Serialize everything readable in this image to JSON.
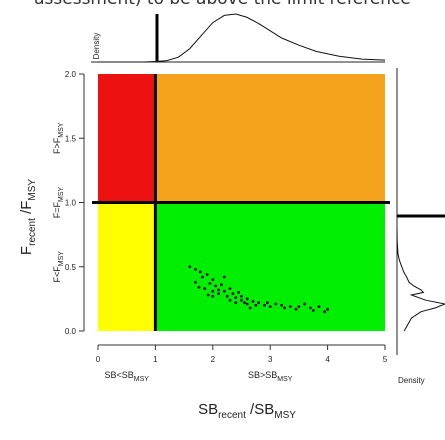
{
  "banner_text": "assessment) to be above the limit reference",
  "chart_data": {
    "type": "scatter",
    "xlabel_main": "SB",
    "xlabel_main_sub": "recent",
    "xlabel_sep": " /SB",
    "xlabel_main_sub2": "MSY",
    "ylabel_main": "F",
    "ylabel_main_sub": "recent",
    "ylabel_sep": " /F",
    "ylabel_main_sub2": "MSY",
    "x_ticks": [
      "0",
      "1",
      "2",
      "3",
      "4",
      "5"
    ],
    "y_ticks": [
      "0.0",
      "0.5",
      "1.0",
      "1.5",
      "2.0"
    ],
    "xlim": [
      0,
      5
    ],
    "ylim": [
      0,
      2
    ],
    "x_region_labels": [
      {
        "main": "SB<SB",
        "sub": "MSY",
        "x": 0.5
      },
      {
        "main": "SB>SB",
        "sub": "MSY",
        "x": 3.0
      }
    ],
    "y_region_labels": [
      {
        "main": "F>F",
        "sub": "MSY",
        "y": 1.5
      },
      {
        "main": "F=F",
        "sub": "MSY",
        "y": 1.0
      },
      {
        "main": "F<F",
        "sub": "MSY",
        "y": 0.5
      }
    ],
    "top_density_label": "Density",
    "right_density_label": "Density",
    "reference_lines": {
      "x": 1.0,
      "y": 1.0
    },
    "quadrant_colors": {
      "top_left": "#ee1111",
      "top_right": "#f5a31c",
      "bottom_left": "#ffff00",
      "bottom_right": "#00ee00"
    },
    "points": [
      [
        1.6,
        0.5
      ],
      [
        1.7,
        0.48
      ],
      [
        1.78,
        0.46
      ],
      [
        1.82,
        0.42
      ],
      [
        1.9,
        0.44
      ],
      [
        1.7,
        0.38
      ],
      [
        1.76,
        0.34
      ],
      [
        1.86,
        0.33
      ],
      [
        1.95,
        0.37
      ],
      [
        2.0,
        0.4
      ],
      [
        2.05,
        0.35
      ],
      [
        2.1,
        0.32
      ],
      [
        2.15,
        0.36
      ],
      [
        1.92,
        0.28
      ],
      [
        2.0,
        0.27
      ],
      [
        2.1,
        0.29
      ],
      [
        2.2,
        0.31
      ],
      [
        2.25,
        0.27
      ],
      [
        2.3,
        0.33
      ],
      [
        2.35,
        0.29
      ],
      [
        2.4,
        0.26
      ],
      [
        2.45,
        0.3
      ],
      [
        2.5,
        0.27
      ],
      [
        2.3,
        0.24
      ],
      [
        2.4,
        0.22
      ],
      [
        2.5,
        0.24
      ],
      [
        2.55,
        0.22
      ],
      [
        2.6,
        0.25
      ],
      [
        2.7,
        0.23
      ],
      [
        2.6,
        0.21
      ],
      [
        2.75,
        0.2
      ],
      [
        2.8,
        0.22
      ],
      [
        2.9,
        0.2
      ],
      [
        2.95,
        0.22
      ],
      [
        3.0,
        0.19
      ],
      [
        3.1,
        0.21
      ],
      [
        3.2,
        0.2
      ],
      [
        3.25,
        0.18
      ],
      [
        3.35,
        0.19
      ],
      [
        3.45,
        0.17
      ],
      [
        3.5,
        0.19
      ],
      [
        3.6,
        0.21
      ],
      [
        3.7,
        0.18
      ],
      [
        3.75,
        0.16
      ],
      [
        3.85,
        0.19
      ],
      [
        3.95,
        0.15
      ],
      [
        4.0,
        0.17
      ],
      [
        2.2,
        0.42
      ],
      [
        2.0,
        0.31
      ],
      [
        2.65,
        0.18
      ]
    ],
    "top_density_x": [
      0,
      0.8,
      1.0,
      1.2,
      1.4,
      1.6,
      1.8,
      2.0,
      2.2,
      2.4,
      2.6,
      2.8,
      3.0,
      3.2,
      3.5,
      3.8,
      4.2,
      4.6,
      5.0
    ],
    "top_density_y": [
      0,
      0,
      0.01,
      0.03,
      0.1,
      0.28,
      0.55,
      0.82,
      0.97,
      1.0,
      0.93,
      0.8,
      0.65,
      0.5,
      0.35,
      0.22,
      0.12,
      0.06,
      0.04
    ],
    "right_density_y": [
      0.0,
      0.1,
      0.15,
      0.18,
      0.21,
      0.24,
      0.28,
      0.3,
      0.32,
      0.35,
      0.38,
      0.42,
      0.46,
      0.5,
      0.55,
      0.6,
      0.7,
      0.8
    ],
    "right_density_v": [
      0.15,
      0.3,
      0.5,
      0.8,
      1.0,
      0.6,
      0.3,
      0.55,
      0.5,
      0.35,
      0.25,
      0.2,
      0.14,
      0.1,
      0.05,
      0.02,
      0.005,
      0
    ]
  }
}
